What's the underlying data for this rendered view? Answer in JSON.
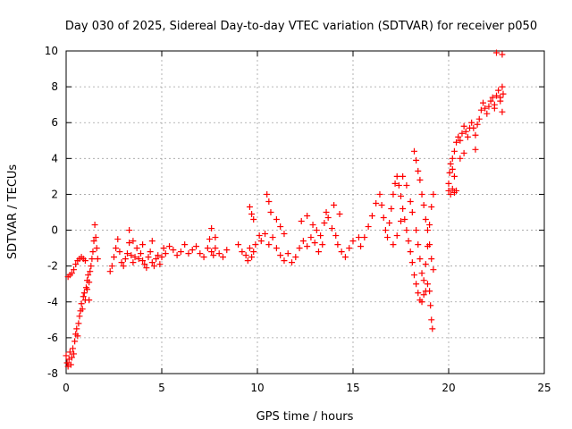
{
  "chart_data": {
    "type": "scatter",
    "title": "Day 030 of 2025, Sidereal Day-to-day VTEC variation (SDTVAR) for receiver p050",
    "xlabel": "GPS time / hours",
    "ylabel": "SDTVAR / TECUs",
    "xlim": [
      0,
      25
    ],
    "ylim": [
      -8,
      10
    ],
    "xticks": [
      0,
      5,
      10,
      15,
      20,
      25
    ],
    "yticks": [
      -8,
      -6,
      -4,
      -2,
      0,
      2,
      4,
      6,
      8,
      10
    ],
    "grid": true,
    "marker": "plus",
    "color": "#ff0000",
    "series": [
      {
        "name": "SDTVAR",
        "points": [
          [
            0.0,
            -7.0
          ],
          [
            0.05,
            -7.4
          ],
          [
            0.1,
            -7.6
          ],
          [
            0.15,
            -7.2
          ],
          [
            0.2,
            -6.8
          ],
          [
            0.25,
            -7.5
          ],
          [
            0.3,
            -7.1
          ],
          [
            0.35,
            -6.6
          ],
          [
            0.4,
            -6.9
          ],
          [
            0.45,
            -6.2
          ],
          [
            0.5,
            -5.8
          ],
          [
            0.55,
            -5.5
          ],
          [
            0.6,
            -5.9
          ],
          [
            0.65,
            -5.2
          ],
          [
            0.7,
            -4.8
          ],
          [
            0.75,
            -4.5
          ],
          [
            0.8,
            -4.1
          ],
          [
            0.85,
            -4.4
          ],
          [
            0.9,
            -3.7
          ],
          [
            0.95,
            -3.5
          ],
          [
            1.0,
            -3.9
          ],
          [
            1.05,
            -3.2
          ],
          [
            1.1,
            -2.8
          ],
          [
            1.15,
            -2.5
          ],
          [
            1.2,
            -2.9
          ],
          [
            1.25,
            -2.3
          ],
          [
            1.3,
            -2.0
          ],
          [
            1.35,
            -1.6
          ],
          [
            1.4,
            -1.2
          ],
          [
            1.45,
            -0.6
          ],
          [
            1.5,
            0.3
          ],
          [
            1.55,
            -0.4
          ],
          [
            1.6,
            -1.0
          ],
          [
            1.65,
            -1.6
          ],
          [
            0.1,
            -2.6
          ],
          [
            0.2,
            -2.5
          ],
          [
            0.3,
            -2.4
          ],
          [
            0.4,
            -2.2
          ],
          [
            0.5,
            -1.9
          ],
          [
            0.6,
            -1.7
          ],
          [
            0.7,
            -1.6
          ],
          [
            0.8,
            -1.5
          ],
          [
            0.9,
            -1.6
          ],
          [
            1.0,
            -1.7
          ],
          [
            1.1,
            -3.3
          ],
          [
            1.2,
            -3.9
          ],
          [
            2.3,
            -2.3
          ],
          [
            2.4,
            -2.0
          ],
          [
            2.5,
            -1.5
          ],
          [
            2.6,
            -1.0
          ],
          [
            2.7,
            -0.5
          ],
          [
            2.8,
            -1.2
          ],
          [
            2.9,
            -1.8
          ],
          [
            3.0,
            -2.0
          ],
          [
            3.1,
            -1.6
          ],
          [
            3.2,
            -1.3
          ],
          [
            3.3,
            -0.7
          ],
          [
            3.4,
            -1.4
          ],
          [
            3.5,
            -1.8
          ],
          [
            3.6,
            -1.5
          ],
          [
            3.7,
            -1.0
          ],
          [
            3.8,
            -1.6
          ],
          [
            3.9,
            -1.3
          ],
          [
            4.0,
            -1.7
          ],
          [
            4.1,
            -1.9
          ],
          [
            4.2,
            -2.1
          ],
          [
            4.3,
            -1.5
          ],
          [
            4.4,
            -1.2
          ],
          [
            4.5,
            -1.8
          ],
          [
            4.6,
            -2.0
          ],
          [
            4.7,
            -1.6
          ],
          [
            4.8,
            -1.4
          ],
          [
            4.9,
            -1.9
          ],
          [
            5.0,
            -1.5
          ],
          [
            5.1,
            -1.0
          ],
          [
            5.2,
            -1.3
          ],
          [
            5.4,
            -0.9
          ],
          [
            5.6,
            -1.1
          ],
          [
            5.8,
            -1.4
          ],
          [
            6.0,
            -1.2
          ],
          [
            6.2,
            -0.8
          ],
          [
            6.4,
            -1.3
          ],
          [
            6.6,
            -1.1
          ],
          [
            6.8,
            -0.9
          ],
          [
            7.0,
            -1.3
          ],
          [
            7.2,
            -1.5
          ],
          [
            7.4,
            -1.0
          ],
          [
            7.5,
            -0.5
          ],
          [
            7.6,
            -1.2
          ],
          [
            7.7,
            -1.4
          ],
          [
            7.8,
            -1.0
          ],
          [
            8.0,
            -1.3
          ],
          [
            8.2,
            -1.5
          ],
          [
            8.4,
            -1.1
          ],
          [
            3.3,
            0.0
          ],
          [
            3.5,
            -0.6
          ],
          [
            4.0,
            -0.8
          ],
          [
            4.5,
            -0.6
          ],
          [
            7.6,
            0.1
          ],
          [
            7.8,
            -0.4
          ],
          [
            9.0,
            -0.8
          ],
          [
            9.2,
            -1.2
          ],
          [
            9.4,
            -1.4
          ],
          [
            9.6,
            -1.0
          ],
          [
            9.7,
            -1.5
          ],
          [
            9.8,
            -1.2
          ],
          [
            9.5,
            -1.7
          ],
          [
            9.9,
            -0.8
          ],
          [
            10.1,
            -0.3
          ],
          [
            10.2,
            -0.6
          ],
          [
            10.4,
            -0.2
          ],
          [
            10.6,
            -0.8
          ],
          [
            10.8,
            -0.4
          ],
          [
            11.0,
            -1.0
          ],
          [
            11.2,
            -1.4
          ],
          [
            11.4,
            -1.7
          ],
          [
            11.6,
            -1.3
          ],
          [
            11.8,
            -1.8
          ],
          [
            12.0,
            -1.5
          ],
          [
            12.2,
            -1.0
          ],
          [
            12.4,
            -0.6
          ],
          [
            12.6,
            -0.9
          ],
          [
            12.8,
            -0.4
          ],
          [
            13.0,
            -0.7
          ],
          [
            13.2,
            -1.2
          ],
          [
            13.4,
            -0.8
          ],
          [
            9.6,
            1.3
          ],
          [
            9.7,
            0.9
          ],
          [
            9.8,
            0.6
          ],
          [
            10.5,
            2.0
          ],
          [
            10.6,
            1.6
          ],
          [
            10.7,
            1.0
          ],
          [
            11.0,
            0.6
          ],
          [
            11.2,
            0.2
          ],
          [
            11.4,
            -0.2
          ],
          [
            12.3,
            0.5
          ],
          [
            12.6,
            0.8
          ],
          [
            12.9,
            0.3
          ],
          [
            13.1,
            0.0
          ],
          [
            13.3,
            -0.3
          ],
          [
            13.5,
            0.4
          ],
          [
            13.7,
            0.7
          ],
          [
            13.9,
            0.1
          ],
          [
            14.1,
            -0.3
          ],
          [
            14.2,
            -0.8
          ],
          [
            14.4,
            -1.2
          ],
          [
            14.6,
            -1.5
          ],
          [
            14.8,
            -1.0
          ],
          [
            15.0,
            -0.6
          ],
          [
            15.3,
            -0.4
          ],
          [
            13.6,
            1.0
          ],
          [
            14.0,
            1.4
          ],
          [
            14.3,
            0.9
          ],
          [
            15.4,
            -0.9
          ],
          [
            15.6,
            -0.4
          ],
          [
            15.8,
            0.2
          ],
          [
            16.0,
            0.8
          ],
          [
            16.2,
            1.5
          ],
          [
            16.4,
            2.0
          ],
          [
            16.5,
            1.4
          ],
          [
            16.6,
            0.7
          ],
          [
            16.7,
            0.0
          ],
          [
            16.8,
            -0.4
          ],
          [
            16.9,
            0.4
          ],
          [
            17.0,
            1.2
          ],
          [
            17.1,
            2.0
          ],
          [
            17.2,
            2.6
          ],
          [
            17.3,
            3.0
          ],
          [
            17.4,
            2.5
          ],
          [
            17.5,
            1.9
          ],
          [
            17.6,
            1.2
          ],
          [
            17.7,
            0.6
          ],
          [
            17.8,
            0.0
          ],
          [
            17.9,
            -0.6
          ],
          [
            18.0,
            -1.2
          ],
          [
            18.1,
            -1.8
          ],
          [
            18.2,
            -2.5
          ],
          [
            18.3,
            -3.0
          ],
          [
            18.4,
            -3.5
          ],
          [
            18.5,
            -3.9
          ],
          [
            18.6,
            -4.0
          ],
          [
            18.7,
            -3.6
          ],
          [
            18.8,
            -3.4
          ],
          [
            18.9,
            -3.0
          ],
          [
            19.0,
            -3.4
          ],
          [
            19.05,
            -4.2
          ],
          [
            19.1,
            -5.0
          ],
          [
            19.15,
            -5.5
          ],
          [
            18.2,
            4.4
          ],
          [
            18.3,
            3.9
          ],
          [
            18.4,
            3.3
          ],
          [
            18.5,
            2.8
          ],
          [
            18.6,
            2.0
          ],
          [
            18.7,
            1.4
          ],
          [
            18.8,
            0.6
          ],
          [
            18.9,
            0.0
          ],
          [
            19.0,
            -0.8
          ],
          [
            19.1,
            -1.6
          ],
          [
            19.2,
            -2.2
          ],
          [
            17.6,
            3.0
          ],
          [
            17.8,
            2.5
          ],
          [
            18.0,
            1.6
          ],
          [
            18.1,
            1.0
          ],
          [
            18.3,
            0.0
          ],
          [
            18.4,
            -0.8
          ],
          [
            18.5,
            -1.6
          ],
          [
            18.6,
            -2.4
          ],
          [
            18.7,
            -2.8
          ],
          [
            18.8,
            -1.9
          ],
          [
            18.9,
            -0.9
          ],
          [
            19.0,
            0.3
          ],
          [
            19.1,
            1.3
          ],
          [
            19.2,
            2.0
          ],
          [
            17.5,
            0.5
          ],
          [
            17.3,
            -0.3
          ],
          [
            17.1,
            -0.8
          ],
          [
            20.0,
            2.6
          ],
          [
            20.05,
            3.2
          ],
          [
            20.1,
            3.7
          ],
          [
            20.2,
            4.0
          ],
          [
            20.3,
            4.4
          ],
          [
            20.4,
            4.9
          ],
          [
            20.5,
            5.2
          ],
          [
            20.6,
            5.0
          ],
          [
            20.7,
            5.4
          ],
          [
            20.8,
            5.8
          ],
          [
            20.9,
            5.5
          ],
          [
            21.0,
            5.2
          ],
          [
            21.1,
            5.7
          ],
          [
            21.2,
            6.0
          ],
          [
            21.3,
            5.7
          ],
          [
            21.4,
            5.3
          ],
          [
            21.5,
            5.9
          ],
          [
            21.6,
            6.2
          ],
          [
            21.7,
            6.7
          ],
          [
            21.8,
            7.1
          ],
          [
            21.9,
            6.8
          ],
          [
            22.0,
            6.5
          ],
          [
            22.1,
            6.9
          ],
          [
            22.2,
            7.2
          ],
          [
            22.3,
            7.4
          ],
          [
            22.4,
            7.0
          ],
          [
            22.5,
            7.5
          ],
          [
            22.6,
            7.8
          ],
          [
            22.7,
            7.4
          ],
          [
            22.8,
            8.0
          ],
          [
            22.85,
            7.6
          ],
          [
            20.0,
            2.2
          ],
          [
            20.1,
            2.0
          ],
          [
            20.2,
            2.3
          ],
          [
            20.3,
            2.1
          ],
          [
            20.4,
            2.2
          ],
          [
            20.3,
            3.0
          ],
          [
            20.2,
            3.4
          ],
          [
            20.6,
            4.0
          ],
          [
            20.8,
            4.3
          ],
          [
            21.4,
            4.5
          ],
          [
            22.4,
            6.8
          ],
          [
            22.7,
            7.2
          ],
          [
            22.8,
            6.6
          ],
          [
            22.5,
            9.9
          ],
          [
            22.8,
            9.8
          ]
        ]
      }
    ]
  }
}
